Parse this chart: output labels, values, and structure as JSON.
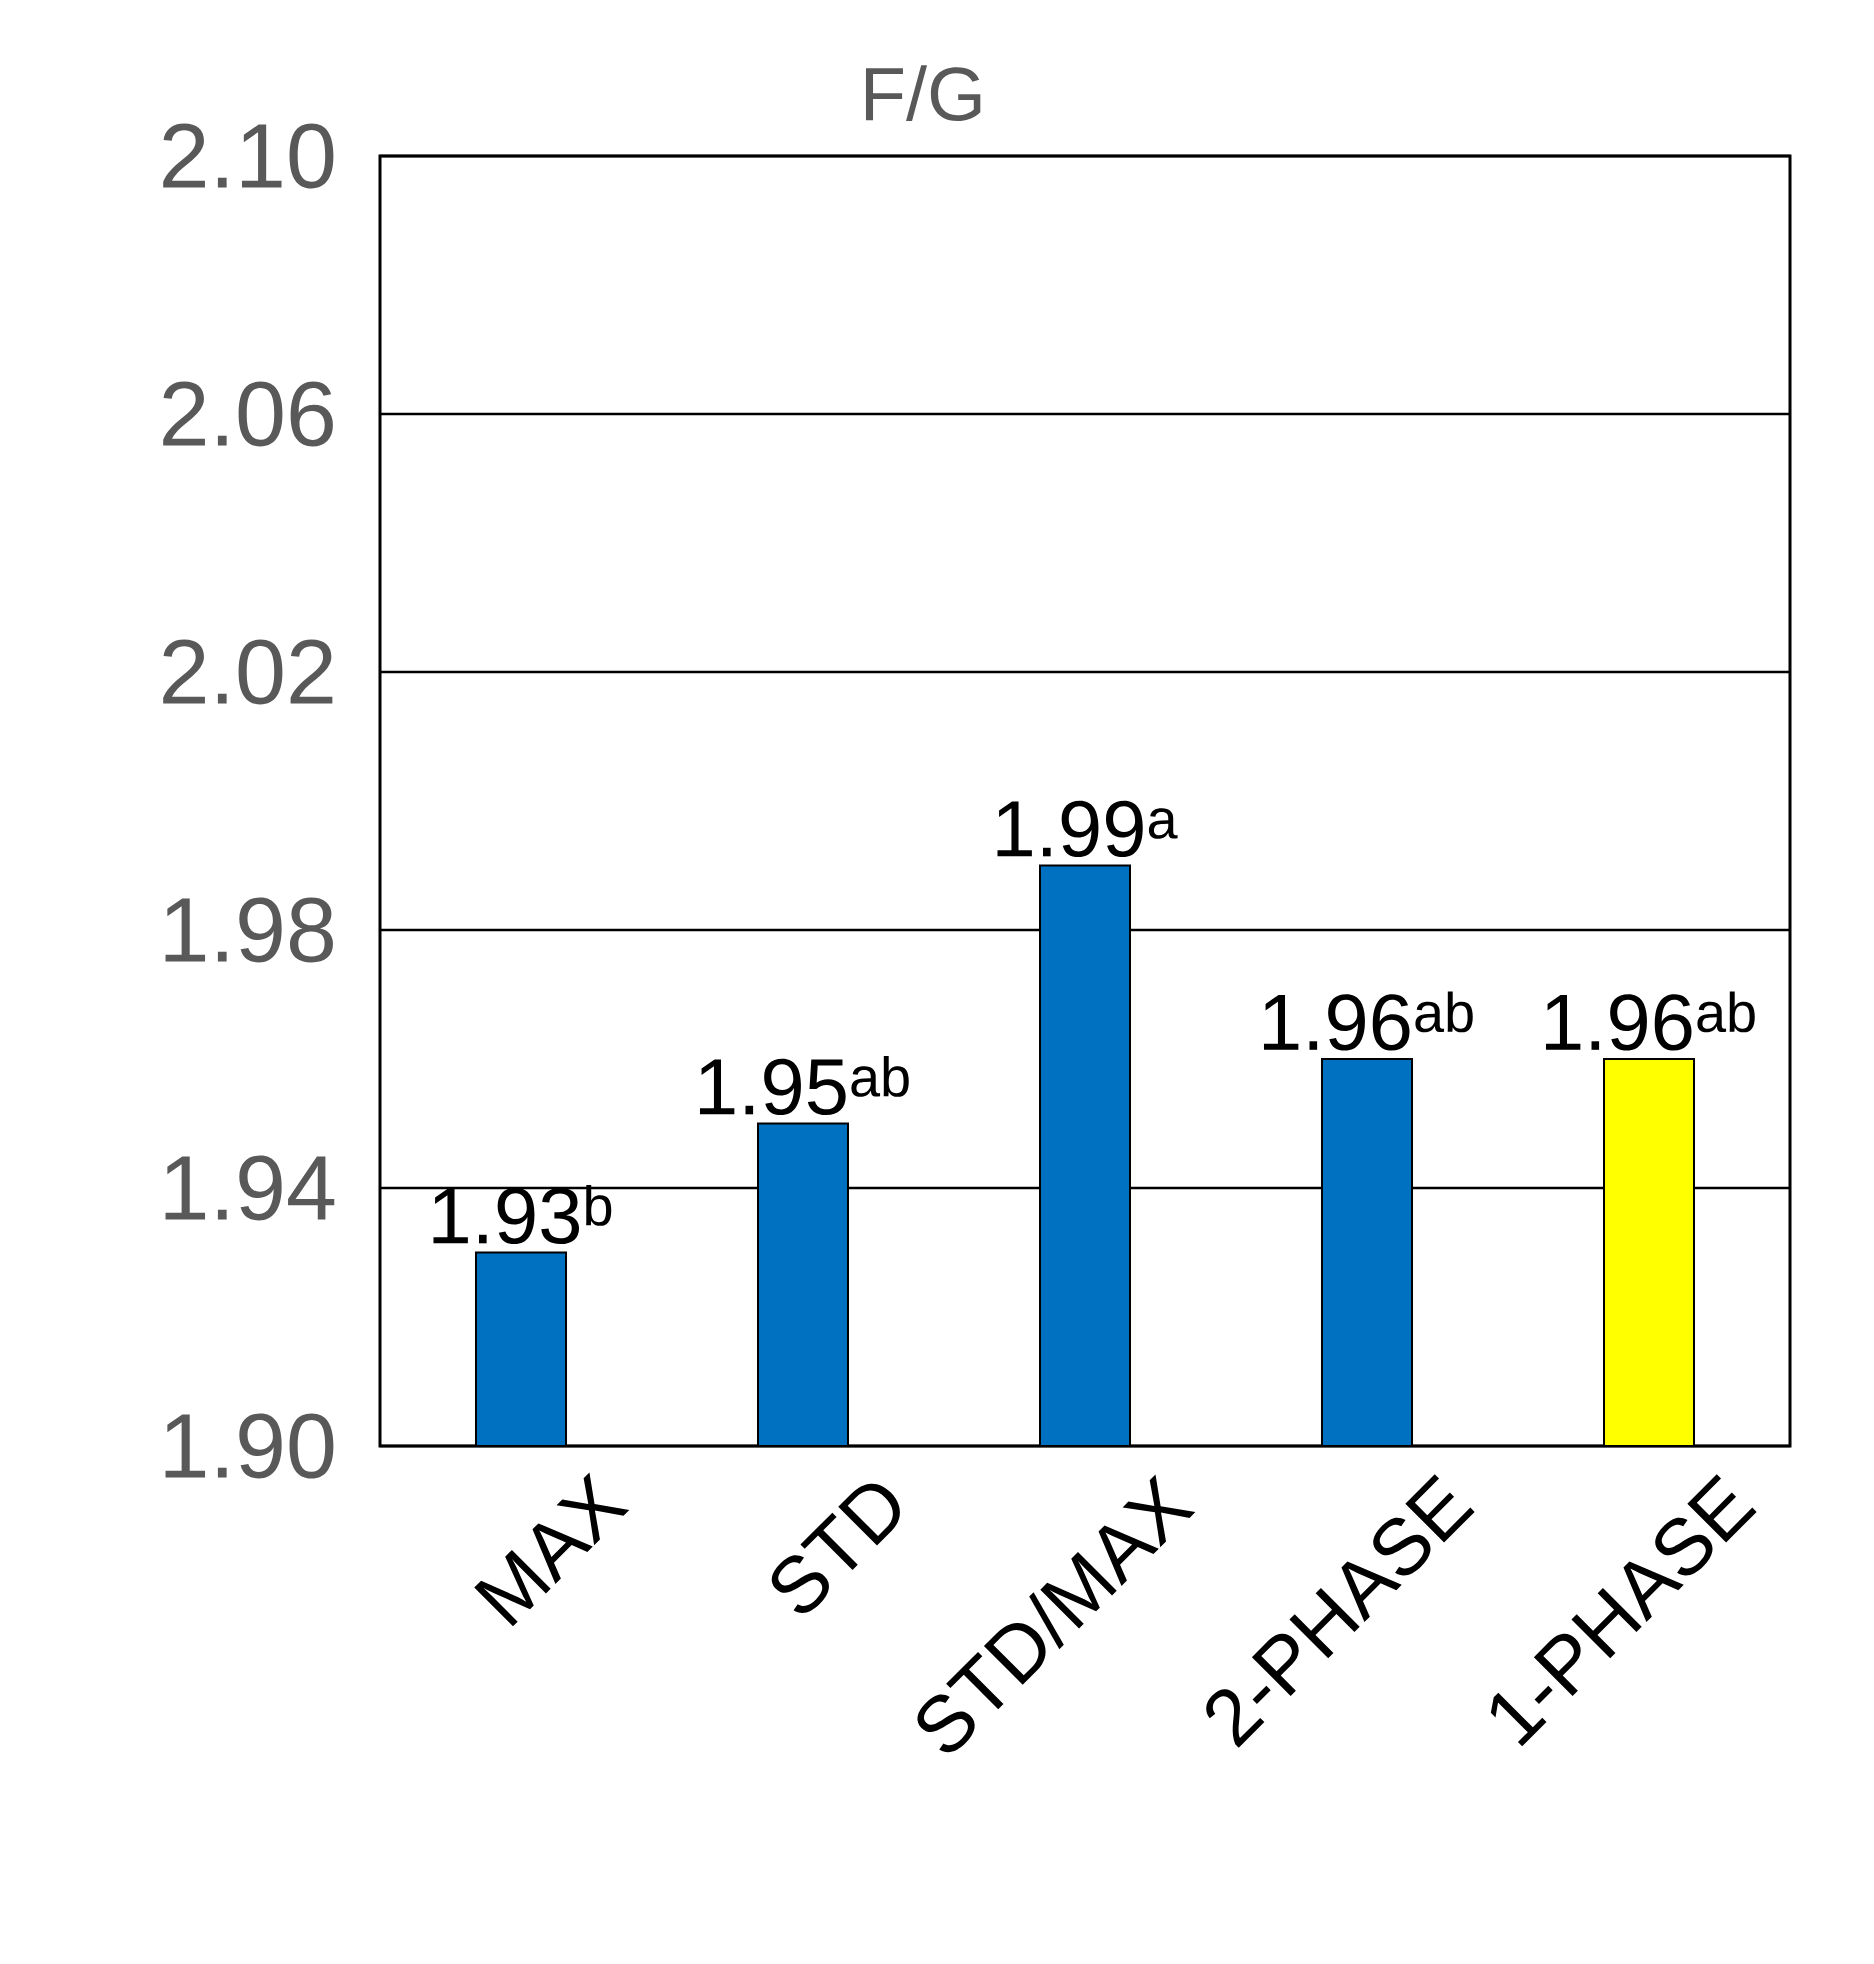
{
  "chart_data": {
    "type": "bar",
    "title": "F/G",
    "categories": [
      "MAX",
      "STD",
      "STD/MAX",
      "2-PHASE",
      "1-PHASE"
    ],
    "values": [
      1.93,
      1.95,
      1.99,
      1.96,
      1.96
    ],
    "colors": [
      "#0070c0",
      "#0070c0",
      "#0070c0",
      "#0070c0",
      "#ffff00"
    ],
    "value_labels": [
      "1.93$^{b}$",
      "1.95$^{ab}$",
      "1.99$^{a}$",
      "1.96$^{ab}$",
      "1.96$^{ab}$"
    ],
    "ylim": [
      1.9,
      2.1
    ],
    "yticks": [
      {
        "value": 1.9,
        "label": "1.90"
      },
      1.94,
      1.98,
      2.02,
      2.06,
      {
        "value": 2.1,
        "label": "2.10"
      }
    ],
    "grid": "y"
  }
}
